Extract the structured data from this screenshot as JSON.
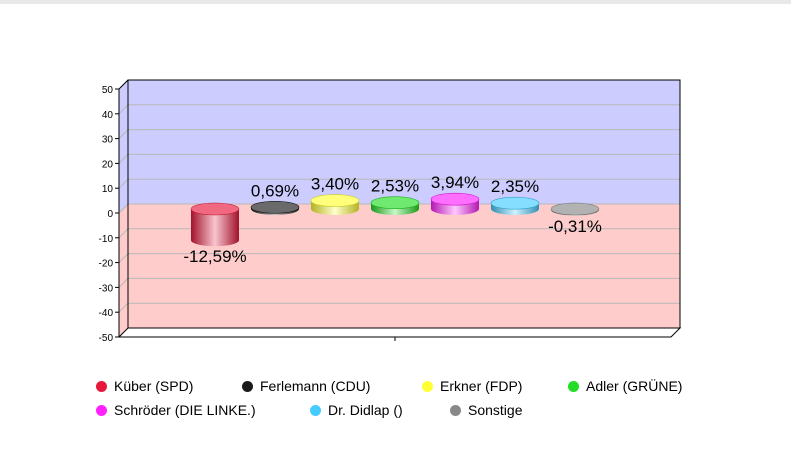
{
  "chart_data": {
    "type": "bar",
    "style": "3d-cylinder",
    "categories": [
      "Küber (SPD)",
      "Ferlemann (CDU)",
      "Erkner (FDP)",
      "Adler (GRÜNE)",
      "Schröder (DIE LINKE.)",
      "Dr. Didlap ()",
      "Sonstige"
    ],
    "values": [
      -12.59,
      0.69,
      3.4,
      2.53,
      3.94,
      2.35,
      -0.31
    ],
    "data_labels": [
      "-12,59%",
      "0,69%",
      "3,40%",
      "2,53%",
      "3,94%",
      "2,35%",
      "-0,31%"
    ],
    "colors": [
      "#e8183c",
      "#1a1a1a",
      "#ffff33",
      "#22dd22",
      "#ff22ff",
      "#44ccff",
      "#888888"
    ],
    "ylim": [
      -50,
      50
    ],
    "yticks": [
      "50",
      "40",
      "30",
      "20",
      "10",
      "0",
      "-10",
      "-20",
      "-30",
      "-40",
      "-50"
    ],
    "background_positive": "#ccccff",
    "background_negative": "#ffcccc",
    "grid": true,
    "legend_position": "bottom"
  }
}
